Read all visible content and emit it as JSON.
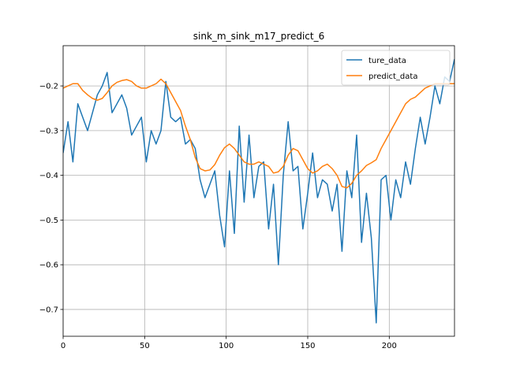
{
  "chart_data": {
    "type": "line",
    "title": "sink_m_sink_m17_predict_6",
    "xlabel": "",
    "ylabel": "",
    "xlim": [
      0,
      240
    ],
    "ylim": [
      -0.76,
      -0.11
    ],
    "xticks": [
      0,
      50,
      100,
      150,
      200
    ],
    "yticks": [
      -0.2,
      -0.3,
      -0.4,
      -0.5,
      -0.6,
      -0.7
    ],
    "grid": true,
    "legend_position": "top-right",
    "series": [
      {
        "name": "ture_data",
        "color": "#1f77b4",
        "x_start": 0,
        "x_step": 3,
        "values": [
          -0.35,
          -0.28,
          -0.37,
          -0.24,
          -0.27,
          -0.3,
          -0.26,
          -0.22,
          -0.2,
          -0.17,
          -0.26,
          -0.24,
          -0.22,
          -0.25,
          -0.31,
          -0.29,
          -0.27,
          -0.37,
          -0.3,
          -0.33,
          -0.3,
          -0.19,
          -0.27,
          -0.28,
          -0.27,
          -0.33,
          -0.32,
          -0.34,
          -0.41,
          -0.45,
          -0.42,
          -0.39,
          -0.49,
          -0.56,
          -0.39,
          -0.53,
          -0.29,
          -0.46,
          -0.31,
          -0.45,
          -0.38,
          -0.37,
          -0.52,
          -0.42,
          -0.6,
          -0.4,
          -0.28,
          -0.39,
          -0.38,
          -0.52,
          -0.44,
          -0.35,
          -0.45,
          -0.41,
          -0.42,
          -0.48,
          -0.42,
          -0.57,
          -0.39,
          -0.45,
          -0.31,
          -0.55,
          -0.44,
          -0.54,
          -0.73,
          -0.41,
          -0.4,
          -0.5,
          -0.41,
          -0.45,
          -0.37,
          -0.42,
          -0.34,
          -0.27,
          -0.33,
          -0.27,
          -0.2,
          -0.24,
          -0.18,
          -0.19,
          -0.14
        ]
      },
      {
        "name": "predict_data",
        "color": "#ff7f0e",
        "x_start": 0,
        "x_step": 3,
        "values": [
          -0.205,
          -0.2,
          -0.195,
          -0.195,
          -0.21,
          -0.22,
          -0.228,
          -0.232,
          -0.228,
          -0.215,
          -0.2,
          -0.192,
          -0.188,
          -0.186,
          -0.19,
          -0.2,
          -0.205,
          -0.205,
          -0.2,
          -0.195,
          -0.185,
          -0.195,
          -0.215,
          -0.235,
          -0.255,
          -0.29,
          -0.32,
          -0.36,
          -0.385,
          -0.39,
          -0.388,
          -0.376,
          -0.355,
          -0.338,
          -0.33,
          -0.34,
          -0.355,
          -0.37,
          -0.375,
          -0.375,
          -0.37,
          -0.375,
          -0.38,
          -0.395,
          -0.392,
          -0.38,
          -0.355,
          -0.34,
          -0.345,
          -0.365,
          -0.385,
          -0.395,
          -0.39,
          -0.38,
          -0.375,
          -0.385,
          -0.4,
          -0.425,
          -0.428,
          -0.418,
          -0.4,
          -0.39,
          -0.378,
          -0.372,
          -0.365,
          -0.34,
          -0.32,
          -0.3,
          -0.28,
          -0.26,
          -0.24,
          -0.23,
          -0.225,
          -0.215,
          -0.205,
          -0.2,
          -0.195,
          -0.195,
          -0.195,
          -0.195,
          -0.195
        ]
      }
    ]
  }
}
